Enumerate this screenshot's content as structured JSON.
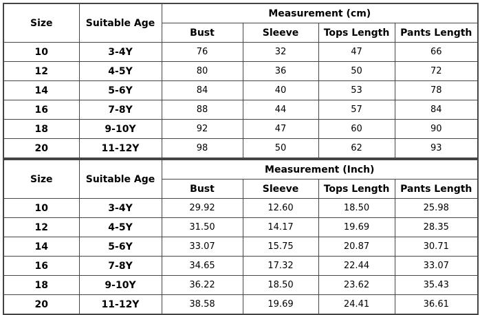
{
  "tables": [
    {
      "header": {
        "size": "Size",
        "age": "Suitable Age",
        "group": "Measurement (cm)",
        "columns": [
          "Bust",
          "Sleeve",
          "Tops Length",
          "Pants Length"
        ]
      },
      "rows": [
        [
          "10",
          "3-4Y",
          "76",
          "32",
          "47",
          "66"
        ],
        [
          "12",
          "4-5Y",
          "80",
          "36",
          "50",
          "72"
        ],
        [
          "14",
          "5-6Y",
          "84",
          "40",
          "53",
          "78"
        ],
        [
          "16",
          "7-8Y",
          "88",
          "44",
          "57",
          "84"
        ],
        [
          "18",
          "9-10Y",
          "92",
          "47",
          "60",
          "90"
        ],
        [
          "20",
          "11-12Y",
          "98",
          "50",
          "62",
          "93"
        ]
      ]
    },
    {
      "header": {
        "size": "Size",
        "age": "Suitable Age",
        "group": "Measurement (Inch)",
        "columns": [
          "Bust",
          "Sleeve",
          "Tops Length",
          "Pants Length"
        ]
      },
      "rows": [
        [
          "10",
          "3-4Y",
          "29.92",
          "12.60",
          "18.50",
          "25.98"
        ],
        [
          "12",
          "4-5Y",
          "31.50",
          "14.17",
          "19.69",
          "28.35"
        ],
        [
          "14",
          "5-6Y",
          "33.07",
          "15.75",
          "20.87",
          "30.71"
        ],
        [
          "16",
          "7-8Y",
          "34.65",
          "17.32",
          "22.44",
          "33.07"
        ],
        [
          "18",
          "9-10Y",
          "36.22",
          "18.50",
          "23.62",
          "35.43"
        ],
        [
          "20",
          "11-12Y",
          "38.58",
          "19.69",
          "24.41",
          "36.61"
        ]
      ]
    }
  ]
}
